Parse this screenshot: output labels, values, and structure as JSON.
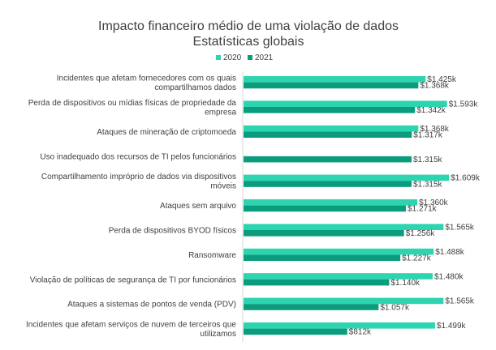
{
  "chart_data": {
    "type": "bar",
    "orientation": "horizontal",
    "title": "Impacto financeiro médio de uma violação de dados",
    "subtitle": "Estatísticas globais",
    "legend_position": "top",
    "grid": false,
    "xlim": [
      0,
      1650
    ],
    "categories": [
      [
        "Incidentes que afetam fornecedores com os quais",
        "compartilhamos dados"
      ],
      [
        "Perda de dispositivos ou mídias físicas de propriedade da",
        "empresa"
      ],
      [
        "Ataques de mineração de criptomoeda"
      ],
      [
        "Uso inadequado dos recursos de TI pelos funcionários"
      ],
      [
        "Compartilhamento impróprio de dados via dispositivos",
        "móveis"
      ],
      [
        "Ataques sem arquivo"
      ],
      [
        "Perda de dispositivos BYOD físicos"
      ],
      [
        "Ransomware"
      ],
      [
        "Violação de políticas de segurança de TI por funcionários"
      ],
      [
        "Ataques a sistemas de pontos de venda (PDV)"
      ],
      [
        "Incidentes que afetam serviços de nuvem de terceiros que",
        "utilizamos"
      ]
    ],
    "series": [
      {
        "name": "2020",
        "color": "#2dd4b0",
        "values": [
          1425,
          1593,
          1368,
          null,
          1609,
          1360,
          1565,
          1488,
          1480,
          1565,
          1499
        ],
        "labels": [
          "$1.425k",
          "$1.593k",
          "$1.368k",
          "",
          "$1.609k",
          "$1.360k",
          "$1.565k",
          "$1.488k",
          "$1.480k",
          "$1.565k",
          "$1.499k"
        ]
      },
      {
        "name": "2021",
        "color": "#0b9c7d",
        "values": [
          1368,
          1342,
          1317,
          1315,
          1315,
          1271,
          1256,
          1227,
          1140,
          1057,
          812
        ],
        "labels": [
          "$1.368k",
          "$1.342k",
          "$1.317k",
          "$1.315k",
          "$1.315k",
          "$1.271k",
          "$1.256k",
          "$1.227k",
          "$1.140k",
          "$1.057k",
          "$812k"
        ]
      }
    ]
  }
}
